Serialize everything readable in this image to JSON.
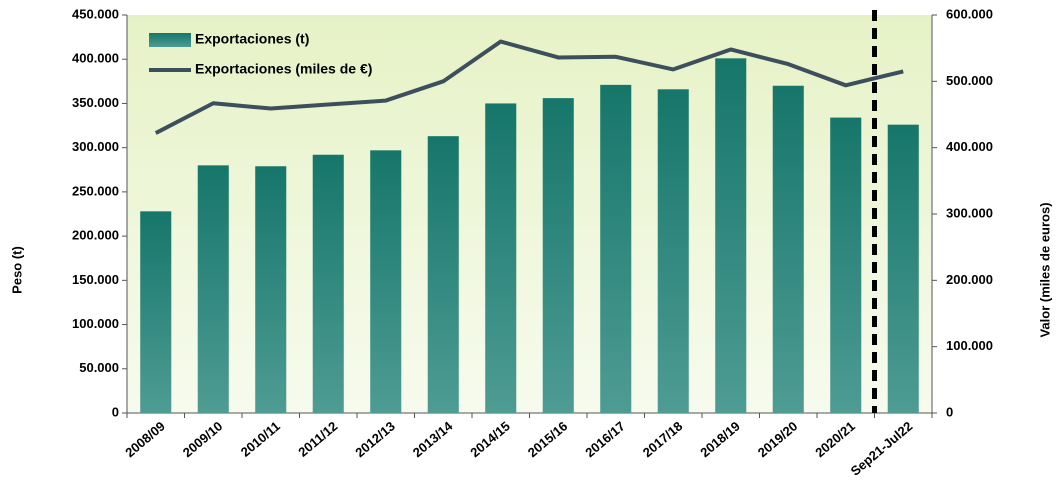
{
  "chart_data": {
    "type": "bar_line",
    "y_label": "Peso (t)",
    "y2_label": "Valor (miles de euros)",
    "categories": [
      "2008/09",
      "2009/10",
      "2010/11",
      "2011/12",
      "2012/13",
      "2013/14",
      "2014/15",
      "2015/16",
      "2016/17",
      "2017/18",
      "2018/19",
      "2019/20",
      "2020/21",
      "Sep21-Jul22"
    ],
    "series": [
      {
        "name": "Exportaciones (t)",
        "type": "bar",
        "color": "#1a7a6e",
        "values": [
          228000,
          280000,
          279000,
          292000,
          297000,
          313000,
          350000,
          356000,
          371000,
          366000,
          401000,
          370000,
          334000,
          326000
        ]
      },
      {
        "name": "Exportaciones (miles de €)",
        "type": "line",
        "axis": "y2",
        "color": "#3d4f5c",
        "values": [
          422000,
          467000,
          459000,
          465000,
          471000,
          500000,
          560000,
          536000,
          537000,
          518000,
          548000,
          526000,
          494000,
          515000
        ]
      }
    ],
    "ylim": [
      0,
      450000
    ],
    "yticks": [
      0,
      {
        "value": 50000,
        "label": "50.000"
      },
      {
        "value": 100000,
        "label": "100.000"
      },
      {
        "value": 150000,
        "label": "150.000"
      },
      {
        "value": 200000,
        "label": "200.000"
      },
      {
        "value": 250000,
        "label": "250.000"
      },
      {
        "value": 300000,
        "label": "300.000"
      },
      {
        "value": 350000,
        "label": "350.000"
      },
      {
        "value": 400000,
        "label": "400.000"
      },
      {
        "value": 450000,
        "label": "450.000"
      }
    ],
    "y2lim": [
      0,
      600000
    ],
    "y2ticks": [
      0,
      {
        "value": 100000,
        "label": "100.000"
      },
      {
        "value": 200000,
        "label": "200.000"
      },
      {
        "value": 300000,
        "label": "300.000"
      },
      {
        "value": 400000,
        "label": "400.000"
      },
      {
        "value": 500000,
        "label": "500.000"
      },
      {
        "value": 600000,
        "label": "600.000"
      }
    ],
    "legend": "top-left"
  }
}
